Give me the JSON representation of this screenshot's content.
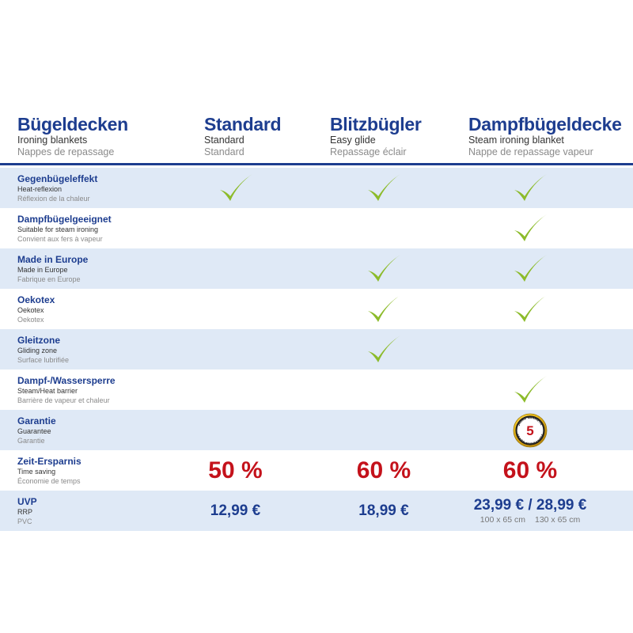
{
  "header": {
    "col0": {
      "title": "Bügeldecken",
      "sub1": "Ironing blankets",
      "sub2": "Nappes de repassage"
    },
    "col1": {
      "title": "Standard",
      "sub1": "Standard",
      "sub2": "Standard"
    },
    "col2": {
      "title": "Blitzbügler",
      "sub1": "Easy glide",
      "sub2": "Repassage éclair"
    },
    "col3": {
      "title": "Dampfbügeldecke",
      "sub1": "Steam ironing blanket",
      "sub2": "Nappe de repassage vapeur"
    }
  },
  "rows": [
    {
      "de": "Gegenbügeleffekt",
      "en": "Heat-reflexion",
      "fr": "Réflexion de la chaleur",
      "standard": true,
      "blitz": true,
      "dampf": true
    },
    {
      "de": "Dampfbügelgeeignet",
      "en": "Suitable for steam ironing",
      "fr": "Convient aux fers à vapeur",
      "standard": false,
      "blitz": false,
      "dampf": true
    },
    {
      "de": "Made in Europe",
      "en": "Made in Europe",
      "fr": "Fabrique en Europe",
      "standard": false,
      "blitz": true,
      "dampf": true
    },
    {
      "de": "Oekotex",
      "en": "Oekotex",
      "fr": "Oekotex",
      "standard": false,
      "blitz": true,
      "dampf": true
    },
    {
      "de": "Gleitzone",
      "en": "Gliding zone",
      "fr": "Surface lubrifiée",
      "standard": false,
      "blitz": true,
      "dampf": false
    },
    {
      "de": "Dampf-/Wassersperre",
      "en": "Steam/Heat barrier",
      "fr": "Barrière de vapeur et chaleur",
      "standard": false,
      "blitz": false,
      "dampf": true
    },
    {
      "de": "Garantie",
      "en": "Guarantee",
      "fr": "Garantie"
    },
    {
      "de": "Zeit-Ersparnis",
      "en": "Time saving",
      "fr": "Économie de temps"
    },
    {
      "de": "UVP",
      "en": "RRP",
      "fr": "PVC"
    }
  ],
  "guarantee": {
    "number": "5",
    "ring_top": "JAHRE GARANTIE",
    "ring_bottom": "YEARS GUARANTEE"
  },
  "time_saving": {
    "standard": "50 %",
    "blitz": "60 %",
    "dampf": "60 %"
  },
  "prices": {
    "standard": "12,99 €",
    "blitz": "18,99 €",
    "dampf": "23,99 € / 28,99 €",
    "dampf_size1": "100 x 65 cm",
    "dampf_size2": "130 x 65 cm"
  },
  "colors": {
    "blue": "#1d3d8f",
    "red": "#c4121b",
    "check": "#8cbb2a",
    "row_tint": "#dfe9f6"
  }
}
